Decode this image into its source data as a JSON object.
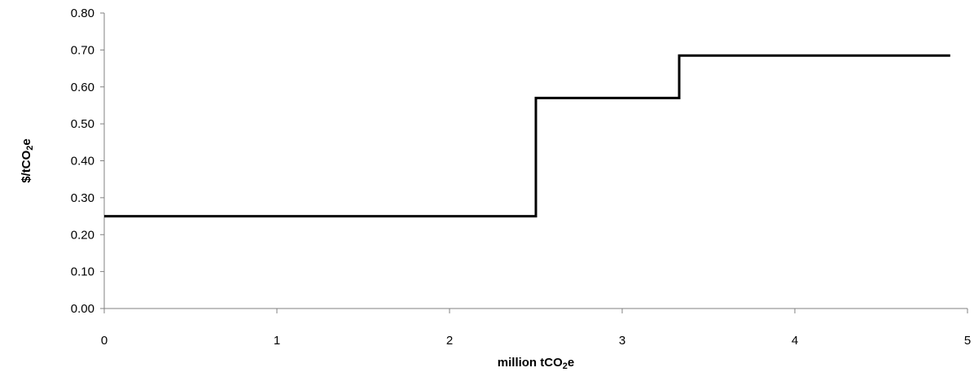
{
  "chart_data": {
    "type": "line",
    "title": "",
    "xlabel": {
      "main": "million tCO",
      "sub": "2",
      "suffix": "e"
    },
    "ylabel": {
      "main": "$/tCO",
      "sub": "2",
      "suffix": "e"
    },
    "xlim": [
      0,
      5
    ],
    "ylim": [
      0,
      0.8
    ],
    "x_ticks": [
      "0",
      "1",
      "2",
      "3",
      "4",
      "5"
    ],
    "y_ticks": [
      "0.00",
      "0.10",
      "0.20",
      "0.30",
      "0.40",
      "0.50",
      "0.60",
      "0.70",
      "0.80"
    ],
    "grid": false,
    "legend": "none",
    "series": [
      {
        "step": "post",
        "x": [
          0,
          2.5,
          3.33,
          4.9
        ],
        "y": [
          0.25,
          0.57,
          0.685,
          0.685
        ],
        "color": "#000000"
      }
    ]
  }
}
